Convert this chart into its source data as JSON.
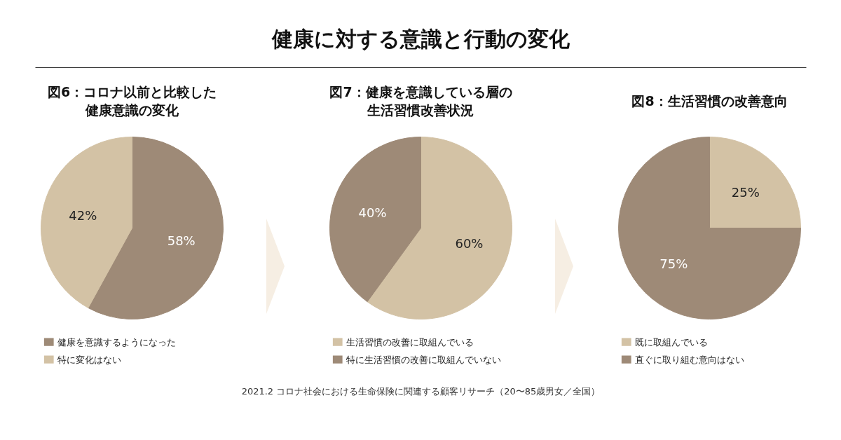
{
  "chart_data": [
    {
      "type": "other",
      "title": "健康に対する意識と行動の変化",
      "annotations": [
        "2021.2 コロナ社会における生命保険に関連する顧客リサーチ（20〜85歳男女／全国）"
      ]
    },
    {
      "type": "pie",
      "title": "図6：コロナ以前と比較した健康意識の変化",
      "categories": [
        "健康を意識するようになった",
        "特に変化はない"
      ],
      "values": [
        58,
        42
      ],
      "colors": [
        "#9e8a77",
        "#d3c2a5"
      ],
      "value_labels": [
        "58%",
        "42%"
      ],
      "legend": "bottom"
    },
    {
      "type": "pie",
      "title": "図7：健康を意識している層の生活習慣改善状況",
      "categories": [
        "生活習慣の改善に取組んでいる",
        "特に生活習慣の改善に取組んでいない"
      ],
      "values": [
        60,
        40
      ],
      "colors": [
        "#d3c2a5",
        "#9e8a77"
      ],
      "value_labels": [
        "60%",
        "40%"
      ],
      "legend": "bottom"
    },
    {
      "type": "pie",
      "title": "図8：生活習慣の改善意向",
      "categories": [
        "既に取組んでいる",
        "直ぐに取り組む意向はない"
      ],
      "values": [
        25,
        75
      ],
      "colors": [
        "#d3c2a5",
        "#9e8a77"
      ],
      "value_labels": [
        "25%",
        "75%"
      ],
      "legend": "bottom"
    }
  ]
}
